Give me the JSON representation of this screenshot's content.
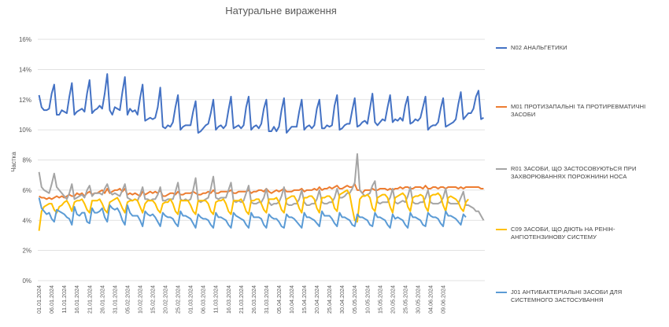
{
  "chart_data": {
    "type": "line",
    "title": "Натуральне вираження",
    "xlabel": "",
    "ylabel": "Частка",
    "ylim": [
      0,
      16
    ],
    "y_ticks": [
      "0%",
      "2%",
      "4%",
      "6%",
      "8%",
      "10%",
      "12%",
      "14%",
      "16%"
    ],
    "x_tick_labels": [
      "01.01.2024",
      "06.01.2024",
      "11.01.2024",
      "16.01.2024",
      "21.01.2024",
      "26.01.2024",
      "31.01.2024",
      "05.02.2024",
      "10.02.2024",
      "15.02.2024",
      "20.02.2024",
      "25.02.2024",
      "01.03.2024",
      "06.03.2024",
      "11.03.2024",
      "16.03.2024",
      "21.03.2024",
      "26.03.2024",
      "31.03.2024",
      "05.04.2024",
      "10.04.2024",
      "15.04.2024",
      "20.04.2024",
      "25.04.2024",
      "30.04.2024",
      "05.05.2024",
      "10.05.2024",
      "15.05.2024",
      "20.05.2024",
      "25.05.2024",
      "30.05.2024",
      "04.06.2024",
      "09.06.2024"
    ],
    "grid": true,
    "legend_position": "right",
    "series": [
      {
        "name": "N02 АНАЛЬГЕТИКИ",
        "color": "#4472C4",
        "values": [
          12.3,
          11.5,
          11.3,
          11.3,
          11.4,
          12.4,
          13.0,
          11.0,
          11.0,
          11.3,
          11.2,
          11.1,
          12.2,
          13.1,
          11.0,
          11.2,
          11.3,
          11.4,
          11.2,
          12.4,
          13.3,
          11.1,
          11.3,
          11.4,
          11.6,
          11.4,
          12.4,
          13.7,
          11.3,
          11.0,
          11.5,
          11.4,
          11.3,
          12.5,
          13.5,
          11.0,
          11.4,
          11.2,
          11.3,
          11.0,
          12.1,
          13.0,
          10.6,
          10.7,
          10.8,
          10.7,
          10.8,
          11.5,
          12.8,
          10.2,
          10.1,
          10.3,
          10.2,
          10.5,
          11.5,
          12.3,
          10.0,
          10.2,
          10.3,
          10.3,
          10.3,
          11.2,
          11.9,
          9.8,
          9.9,
          10.1,
          10.3,
          10.4,
          11.1,
          12.0,
          10.0,
          10.2,
          10.3,
          10.1,
          10.3,
          11.3,
          12.2,
          10.1,
          10.2,
          10.3,
          10.1,
          10.3,
          11.5,
          12.2,
          10.0,
          10.2,
          10.3,
          10.1,
          10.4,
          11.4,
          12.0,
          9.9,
          9.9,
          10.2,
          9.9,
          10.2,
          11.3,
          12.1,
          9.8,
          10.0,
          10.2,
          10.2,
          10.2,
          11.2,
          12.0,
          10.0,
          10.2,
          10.3,
          10.1,
          10.3,
          11.4,
          12.0,
          10.1,
          10.1,
          10.3,
          10.2,
          10.3,
          11.6,
          12.3,
          10.0,
          10.1,
          10.3,
          10.4,
          10.4,
          11.3,
          12.1,
          10.2,
          10.3,
          10.5,
          10.6,
          10.4,
          11.4,
          12.4,
          10.5,
          10.3,
          10.5,
          10.7,
          10.6,
          11.5,
          12.3,
          10.5,
          10.7,
          10.6,
          10.8,
          10.6,
          11.6,
          12.2,
          10.4,
          10.5,
          10.7,
          10.6,
          10.8,
          11.5,
          12.2,
          10.0,
          10.2,
          10.3,
          10.3,
          10.5,
          11.4,
          12.1,
          10.2,
          10.3,
          10.4,
          10.5,
          10.7,
          11.7,
          12.5,
          10.7,
          10.9,
          11.1,
          11.1,
          11.4,
          12.2,
          12.6,
          10.7,
          10.8
        ]
      },
      {
        "name": "M01 ПРОТИЗАПАЛЬНІ ТА ПРОТИРЕВМАТИЧНІ ЗАСОБИ",
        "color": "#ED7D31",
        "values": [
          5.6,
          5.5,
          5.5,
          5.4,
          5.5,
          5.4,
          5.5,
          5.6,
          5.5,
          5.6,
          5.5,
          5.6,
          5.7,
          5.6,
          5.6,
          5.8,
          5.7,
          5.8,
          5.6,
          5.8,
          5.9,
          5.7,
          5.8,
          5.8,
          5.9,
          6.0,
          5.8,
          6.1,
          5.8,
          5.9,
          6.0,
          6.0,
          6.1,
          5.9,
          6.1,
          5.7,
          5.8,
          5.7,
          5.8,
          5.7,
          5.6,
          5.9,
          5.7,
          5.8,
          5.9,
          5.8,
          5.9,
          5.8,
          6.0,
          5.6,
          5.6,
          5.7,
          5.8,
          5.8,
          5.7,
          5.9,
          5.7,
          5.7,
          5.8,
          5.8,
          5.8,
          5.9,
          5.8,
          5.7,
          5.7,
          5.8,
          5.8,
          5.9,
          5.8,
          6.0,
          5.8,
          5.8,
          5.9,
          5.9,
          5.9,
          5.9,
          6.0,
          5.8,
          5.8,
          5.9,
          5.9,
          5.9,
          5.9,
          6.0,
          5.8,
          5.9,
          5.9,
          6.0,
          6.0,
          5.9,
          6.1,
          5.9,
          5.8,
          5.9,
          6.0,
          5.9,
          6.0,
          6.1,
          5.9,
          5.9,
          5.9,
          6.0,
          6.0,
          6.0,
          6.1,
          5.9,
          6.0,
          6.0,
          6.0,
          6.1,
          6.0,
          6.2,
          6.0,
          6.1,
          6.1,
          6.2,
          6.1,
          6.2,
          6.3,
          6.1,
          6.1,
          6.2,
          6.3,
          6.2,
          6.2,
          6.4,
          6.0,
          6.0,
          5.8,
          6.0,
          6.0,
          6.0,
          6.1,
          6.0,
          6.0,
          6.1,
          6.1,
          6.1,
          6.0,
          6.1,
          6.0,
          6.1,
          6.1,
          6.2,
          6.1,
          6.2,
          6.2,
          6.1,
          6.1,
          6.2,
          6.2,
          6.2,
          6.1,
          6.3,
          6.1,
          6.1,
          6.2,
          6.2,
          6.1,
          6.2,
          6.2,
          6.1,
          6.2,
          6.2,
          6.2,
          6.2,
          6.1,
          6.2,
          6.1,
          6.2,
          6.2,
          6.2,
          6.2,
          6.2,
          6.2,
          6.1,
          6.1
        ]
      },
      {
        "name": "R01 ЗАСОБИ, ЩО ЗАСТОСОВУЮТЬСЯ ПРИ ЗАХВОРЮВАННЯХ ПОРОЖНИНИ НОСА",
        "color": "#A5A5A5",
        "values": [
          7.2,
          6.2,
          6.0,
          5.9,
          5.8,
          6.4,
          7.1,
          6.2,
          6.0,
          5.8,
          5.6,
          5.4,
          5.8,
          6.4,
          5.4,
          5.5,
          5.6,
          5.7,
          5.5,
          6.0,
          6.3,
          5.6,
          5.8,
          5.8,
          5.8,
          5.7,
          6.1,
          6.4,
          5.9,
          5.7,
          5.8,
          5.7,
          5.6,
          6.0,
          6.4,
          5.5,
          5.4,
          5.3,
          5.4,
          5.3,
          5.7,
          6.2,
          5.4,
          5.4,
          5.3,
          5.4,
          5.4,
          5.7,
          6.2,
          5.3,
          5.3,
          5.4,
          5.4,
          5.4,
          5.9,
          6.5,
          5.4,
          5.3,
          5.4,
          5.3,
          5.4,
          6.0,
          6.8,
          5.3,
          5.2,
          5.3,
          5.4,
          5.5,
          6.1,
          6.9,
          5.5,
          5.4,
          5.5,
          5.5,
          5.5,
          6.0,
          6.5,
          5.3,
          5.2,
          5.3,
          5.2,
          5.3,
          5.8,
          6.3,
          5.2,
          5.1,
          5.1,
          5.2,
          5.2,
          5.5,
          6.1,
          5.2,
          5.0,
          5.1,
          5.1,
          5.2,
          5.6,
          6.2,
          5.1,
          5.0,
          5.0,
          5.1,
          5.1,
          5.4,
          6.0,
          5.2,
          5.0,
          5.0,
          5.1,
          5.1,
          5.4,
          6.0,
          5.2,
          5.1,
          5.1,
          5.2,
          5.2,
          5.5,
          6.1,
          5.5,
          5.5,
          5.6,
          5.8,
          5.8,
          6.1,
          6.5,
          8.4,
          6.0,
          5.8,
          5.6,
          5.7,
          5.8,
          6.3,
          6.6,
          5.2,
          5.1,
          5.2,
          5.2,
          5.2,
          5.5,
          6.1,
          5.2,
          5.1,
          5.2,
          5.3,
          5.2,
          5.6,
          6.2,
          5.2,
          5.1,
          5.1,
          5.2,
          5.2,
          5.5,
          6.0,
          5.2,
          5.1,
          5.1,
          5.1,
          5.2,
          5.5,
          6.1,
          5.2,
          5.1,
          5.1,
          5.1,
          5.1,
          5.5,
          5.9,
          5.0,
          5.0,
          4.9,
          4.8,
          4.6,
          4.6,
          4.3,
          4.0
        ]
      },
      {
        "name": "C09 ЗАСОБИ, ЩО ДІЮТЬ НА РЕНІН-АНГІОТЕНЗИНОВУ СИСТЕМУ",
        "color": "#FFC000",
        "values": [
          3.3,
          4.6,
          4.9,
          5.0,
          5.1,
          5.1,
          4.7,
          4.5,
          4.9,
          5.0,
          5.2,
          5.3,
          5.0,
          4.6,
          5.2,
          5.3,
          5.3,
          5.4,
          5.1,
          4.7,
          4.5,
          5.3,
          5.3,
          5.3,
          5.4,
          5.1,
          4.7,
          4.5,
          5.2,
          5.3,
          5.4,
          5.5,
          5.2,
          4.8,
          4.5,
          5.2,
          5.3,
          5.3,
          5.4,
          5.3,
          4.9,
          4.5,
          5.1,
          5.3,
          5.3,
          5.3,
          5.1,
          4.7,
          4.5,
          5.1,
          5.2,
          5.2,
          5.4,
          5.1,
          4.6,
          4.4,
          5.3,
          5.3,
          5.3,
          5.3,
          5.0,
          4.6,
          4.4,
          5.3,
          5.3,
          5.3,
          5.3,
          5.1,
          4.6,
          4.4,
          5.2,
          5.3,
          5.3,
          5.4,
          5.1,
          4.6,
          4.4,
          5.3,
          5.3,
          5.3,
          5.4,
          5.1,
          4.6,
          4.4,
          5.3,
          5.3,
          5.4,
          5.4,
          5.1,
          4.7,
          4.5,
          5.4,
          5.4,
          5.4,
          5.5,
          5.2,
          4.7,
          4.5,
          5.4,
          5.5,
          5.6,
          5.6,
          5.3,
          4.8,
          4.5,
          5.5,
          5.5,
          5.6,
          5.6,
          5.4,
          4.8,
          4.5,
          5.5,
          5.5,
          5.6,
          5.6,
          5.4,
          4.8,
          4.6,
          5.7,
          5.8,
          5.9,
          6.0,
          5.7,
          4.8,
          4.0,
          3.9,
          5.4,
          5.6,
          5.6,
          5.7,
          5.5,
          4.8,
          4.6,
          5.5,
          5.6,
          5.7,
          5.7,
          5.5,
          4.9,
          4.5,
          5.5,
          5.6,
          5.7,
          5.8,
          5.6,
          4.9,
          4.6,
          5.5,
          5.6,
          5.6,
          5.7,
          5.6,
          4.9,
          4.6,
          5.6,
          5.7,
          5.7,
          5.8,
          5.6,
          5.0,
          4.6,
          5.5,
          5.6,
          5.5,
          5.4,
          5.2,
          4.8,
          4.6,
          5.2,
          5.4
        ]
      },
      {
        "name": "J01 АНТИБАКТЕРІАЛЬНІ ЗАСОБИ ДЛЯ СИСТЕМНОГО ЗАСТОСУВАННЯ",
        "color": "#5B9BD5",
        "values": [
          5.5,
          4.8,
          4.6,
          4.4,
          4.5,
          4.1,
          3.9,
          4.7,
          4.6,
          4.5,
          4.4,
          4.2,
          4.1,
          3.7,
          4.9,
          4.4,
          4.3,
          4.5,
          4.5,
          3.9,
          3.8,
          4.8,
          4.5,
          4.5,
          4.6,
          4.8,
          4.2,
          3.9,
          5.0,
          4.8,
          4.7,
          4.8,
          4.5,
          4.0,
          3.7,
          5.0,
          4.5,
          4.3,
          4.3,
          4.3,
          4.0,
          3.6,
          4.6,
          4.4,
          4.3,
          4.4,
          4.2,
          3.9,
          3.6,
          4.5,
          4.3,
          4.2,
          4.2,
          4.1,
          3.8,
          3.6,
          4.6,
          4.3,
          4.3,
          4.2,
          4.1,
          3.8,
          3.5,
          4.4,
          4.2,
          4.1,
          4.1,
          4.0,
          3.7,
          3.5,
          4.5,
          4.2,
          4.2,
          4.1,
          4.0,
          3.7,
          3.5,
          4.5,
          4.3,
          4.2,
          4.1,
          4.0,
          3.7,
          3.5,
          4.5,
          4.2,
          4.2,
          4.2,
          4.1,
          3.7,
          3.5,
          4.4,
          4.2,
          4.1,
          4.1,
          3.9,
          3.6,
          3.5,
          4.4,
          4.2,
          4.2,
          4.1,
          3.9,
          3.7,
          3.5,
          4.5,
          4.2,
          4.2,
          4.1,
          4.0,
          3.8,
          3.6,
          4.6,
          4.3,
          4.3,
          4.3,
          4.1,
          3.8,
          3.6,
          4.5,
          4.2,
          4.2,
          4.1,
          4.0,
          3.7,
          3.6,
          4.4,
          4.2,
          4.2,
          4.1,
          4.0,
          3.7,
          3.6,
          4.5,
          4.2,
          4.2,
          4.1,
          4.0,
          3.7,
          3.5,
          4.4,
          4.1,
          4.2,
          4.1,
          4.0,
          3.7,
          3.5,
          4.5,
          4.2,
          4.2,
          4.1,
          4.0,
          3.7,
          3.6,
          4.5,
          4.3,
          4.2,
          4.2,
          4.1,
          3.8,
          3.6,
          4.6,
          4.3,
          4.3,
          4.2,
          4.1,
          3.9,
          3.7,
          4.4,
          4.2
        ]
      }
    ]
  }
}
